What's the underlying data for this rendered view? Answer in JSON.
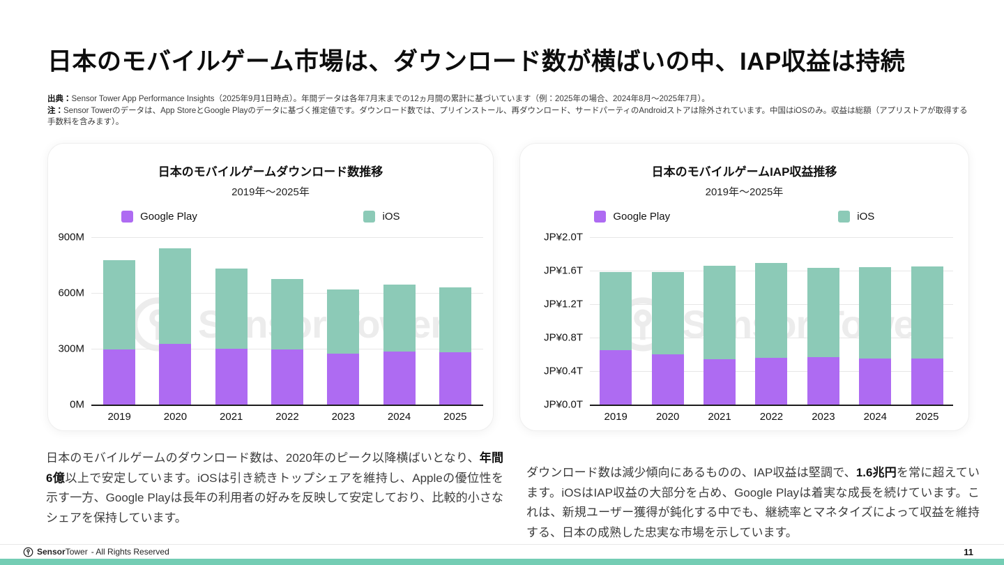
{
  "page": {
    "title": "日本のモバイルゲーム市場は、ダウンロード数が横ばいの中、IAP収益は持続",
    "source_prefix": "出典：",
    "source_text": "Sensor Tower App Performance Insights（2025年9月1日時点）。年間データは各年7月末までの12ヵ月間の累計に基づいています（例：2025年の場合、2024年8月〜2025年7月）。",
    "note_prefix": "注：",
    "note_text": "Sensor Towerのデータは、App StoreとGoogle Playのデータに基づく推定値です。ダウンロード数では、プリインストール、再ダウンロード、サードパーティのAndroidストアは除外されています。中国はiOSのみ。収益は総額（アプリストアが取得する手数料を含みます）。",
    "page_number": "11"
  },
  "watermark": "Sensor Tower",
  "colors": {
    "google_play": "#AE6BF2",
    "ios": "#8CCAB7",
    "accent_strip": "#74CDB4",
    "watermark": "#ECECEC"
  },
  "chart_data": [
    {
      "type": "stacked-bar",
      "title": "日本のモバイルゲームダウンロード数推移",
      "subtitle": "2019年〜2025年",
      "legend_position": "top",
      "grid": true,
      "unit": "downloads (millions)",
      "categories": [
        "2019",
        "2020",
        "2021",
        "2022",
        "2023",
        "2024",
        "2025"
      ],
      "series": [
        {
          "name": "Google Play",
          "color": "#AE6BF2",
          "values": [
            295,
            325,
            300,
            295,
            275,
            285,
            280
          ]
        },
        {
          "name": "iOS",
          "color": "#8CCAB7",
          "values": [
            480,
            515,
            430,
            380,
            345,
            360,
            350
          ]
        }
      ],
      "totals": [
        775,
        840,
        730,
        675,
        620,
        645,
        630
      ],
      "ylim": [
        0,
        900
      ],
      "yticks": [
        {
          "value": 900,
          "label": "900M"
        },
        {
          "value": 600,
          "label": "600M"
        },
        {
          "value": 300,
          "label": "300M"
        },
        {
          "value": 0,
          "label": "0M"
        }
      ]
    },
    {
      "type": "stacked-bar",
      "title": "日本のモバイルゲームIAP収益推移",
      "subtitle": "2019年〜2025年",
      "legend_position": "top",
      "grid": true,
      "unit": "JP¥ trillions",
      "categories": [
        "2019",
        "2020",
        "2021",
        "2022",
        "2023",
        "2024",
        "2025"
      ],
      "series": [
        {
          "name": "Google Play",
          "color": "#AE6BF2",
          "values": [
            0.65,
            0.6,
            0.54,
            0.56,
            0.57,
            0.55,
            0.55
          ]
        },
        {
          "name": "iOS",
          "color": "#8CCAB7",
          "values": [
            0.93,
            0.98,
            1.12,
            1.13,
            1.06,
            1.09,
            1.1
          ]
        }
      ],
      "totals": [
        1.58,
        1.58,
        1.66,
        1.69,
        1.63,
        1.64,
        1.65
      ],
      "ylim": [
        0,
        2.0
      ],
      "yticks": [
        {
          "value": 2.0,
          "label": "JP¥2.0T"
        },
        {
          "value": 1.6,
          "label": "JP¥1.6T"
        },
        {
          "value": 1.2,
          "label": "JP¥1.2T"
        },
        {
          "value": 0.8,
          "label": "JP¥0.8T"
        },
        {
          "value": 0.4,
          "label": "JP¥0.4T"
        },
        {
          "value": 0,
          "label": "JP¥0.0T"
        }
      ]
    }
  ],
  "commentary": {
    "left": {
      "pre": "日本のモバイルゲームのダウンロード数は、2020年のピーク以降横ばいとなり、",
      "bold": "年間6億",
      "post": "以上で安定しています。iOSは引き続きトップシェアを維持し、Appleの優位性を示す一方、Google Playは長年の利用者の好みを反映して安定しており、比較的小さなシェアを保持しています。"
    },
    "right": {
      "pre": "ダウンロード数は減少傾向にあるものの、IAP収益は堅調で、",
      "bold": "1.6兆円",
      "post": "を常に超えています。iOSはIAP収益の大部分を占め、Google Playは着実な成長を続けています。これは、新規ユーザー獲得が鈍化する中でも、継続率とマネタイズによって収益を維持する、日本の成熟した忠実な市場を示しています。"
    }
  },
  "footer": {
    "brand_bold": "Sensor",
    "brand_light": "Tower",
    "rights": "- All Rights Reserved"
  }
}
